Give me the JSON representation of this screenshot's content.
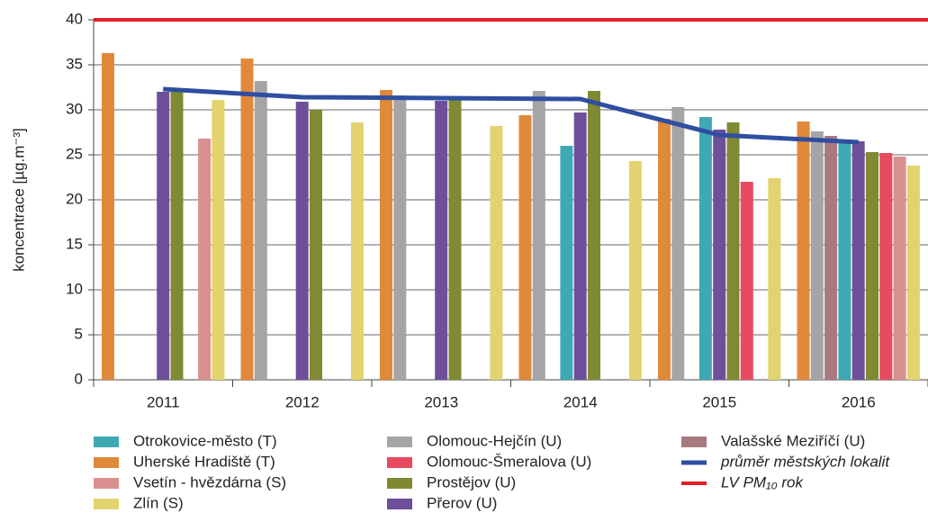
{
  "chart_data": {
    "type": "bar",
    "y_label": "koncentrace [µg.m⁻³]",
    "categories": [
      "2011",
      "2012",
      "2013",
      "2014",
      "2015",
      "2016"
    ],
    "ylim": [
      0,
      40
    ],
    "yticks": [
      0,
      5,
      10,
      15,
      20,
      25,
      30,
      35,
      40
    ],
    "grid": true,
    "series": [
      {
        "name": "Uherské Hradiště (T)",
        "color": "#e0893a",
        "values": [
          36.3,
          35.7,
          32.2,
          29.4,
          29.0,
          28.7
        ]
      },
      {
        "name": "Olomouc-Hejčín (U)",
        "color": "#a5a5a5",
        "values": [
          null,
          33.2,
          31.6,
          32.1,
          30.3,
          27.6
        ]
      },
      {
        "name": "Valašské Meziříčí (U)",
        "color": "#a87a80",
        "values": [
          null,
          null,
          null,
          null,
          null,
          27.1
        ]
      },
      {
        "name": "Otrokovice-město (T)",
        "color": "#3fa9b3",
        "values": [
          null,
          null,
          null,
          26.0,
          29.2,
          26.3
        ]
      },
      {
        "name": "Přerov (U)",
        "color": "#6e4f9a",
        "values": [
          32.0,
          30.9,
          31.0,
          29.7,
          27.8,
          26.5
        ]
      },
      {
        "name": "Prostějov (U)",
        "color": "#7f8a32",
        "values": [
          32.0,
          30.0,
          31.2,
          32.1,
          28.6,
          25.3
        ]
      },
      {
        "name": "Olomouc-Šmeralova (U)",
        "color": "#e84a5f",
        "values": [
          null,
          null,
          null,
          null,
          22.0,
          25.2
        ]
      },
      {
        "name": "Vsetín - hvězdárna (S)",
        "color": "#d9918f",
        "values": [
          26.8,
          null,
          null,
          null,
          null,
          24.8
        ]
      },
      {
        "name": "Zlín (S)",
        "color": "#e3d36e",
        "values": [
          31.1,
          28.6,
          28.2,
          24.3,
          22.4,
          23.8
        ]
      }
    ],
    "average": {
      "name": "průměr městských lokalit",
      "color": "#2f4ea0",
      "values": [
        32.3,
        31.4,
        31.3,
        31.2,
        27.2,
        26.4
      ]
    },
    "limit": {
      "name": "LV PM₁₀ rok",
      "color": "#e32028",
      "value": 40
    }
  }
}
